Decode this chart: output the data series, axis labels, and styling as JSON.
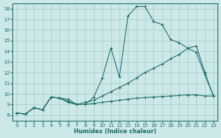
{
  "xlabel": "Humidex (Indice chaleur)",
  "background_color": "#cde8e8",
  "grid_color": "#aacccc",
  "line_color": "#1a6b6b",
  "xlim": [
    -0.5,
    23.5
  ],
  "ylim": [
    7.5,
    18.5
  ],
  "xticks": [
    0,
    1,
    2,
    3,
    4,
    5,
    6,
    7,
    8,
    9,
    10,
    11,
    12,
    13,
    14,
    15,
    16,
    17,
    18,
    19,
    20,
    21,
    22,
    23
  ],
  "yticks": [
    8,
    9,
    10,
    11,
    12,
    13,
    14,
    15,
    16,
    17,
    18
  ],
  "line1_x": [
    0,
    1,
    2,
    3,
    4,
    5,
    6,
    7,
    8,
    9,
    10,
    11,
    12,
    13,
    14,
    15,
    16,
    17,
    18,
    19,
    20,
    21,
    22,
    23
  ],
  "line1_y": [
    8.2,
    8.1,
    8.7,
    8.5,
    9.7,
    9.6,
    9.5,
    9.0,
    9.0,
    9.7,
    11.5,
    14.3,
    11.6,
    17.3,
    18.2,
    18.2,
    16.8,
    16.5,
    15.1,
    14.8,
    14.3,
    13.9,
    11.8,
    9.8
  ],
  "line2_x": [
    0,
    1,
    2,
    3,
    4,
    5,
    6,
    7,
    8,
    9,
    10,
    11,
    12,
    13,
    14,
    15,
    16,
    17,
    18,
    19,
    20,
    21,
    22,
    23
  ],
  "line2_y": [
    8.2,
    8.1,
    8.7,
    8.5,
    9.7,
    9.6,
    9.3,
    9.0,
    9.2,
    9.4,
    9.8,
    10.2,
    10.6,
    11.0,
    11.5,
    12.0,
    12.4,
    12.8,
    13.3,
    13.7,
    14.3,
    14.5,
    12.0,
    9.8
  ],
  "line3_x": [
    0,
    1,
    2,
    3,
    4,
    5,
    6,
    7,
    8,
    9,
    10,
    11,
    12,
    13,
    14,
    15,
    16,
    17,
    18,
    19,
    20,
    21,
    22,
    23
  ],
  "line3_y": [
    8.2,
    8.1,
    8.7,
    8.5,
    9.7,
    9.6,
    9.2,
    9.0,
    9.0,
    9.1,
    9.2,
    9.3,
    9.4,
    9.5,
    9.6,
    9.65,
    9.7,
    9.75,
    9.8,
    9.85,
    9.9,
    9.9,
    9.8,
    9.8
  ]
}
